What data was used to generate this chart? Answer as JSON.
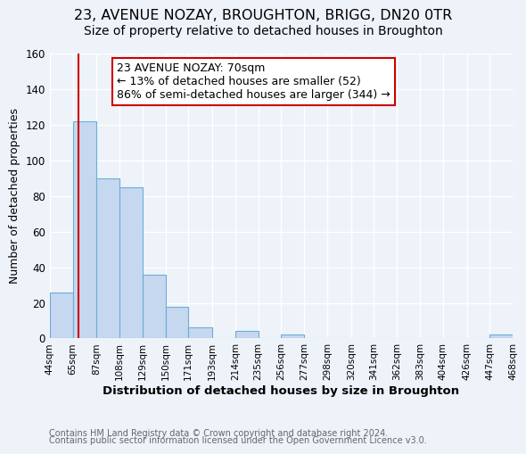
{
  "title": "23, AVENUE NOZAY, BROUGHTON, BRIGG, DN20 0TR",
  "subtitle": "Size of property relative to detached houses in Broughton",
  "xlabel": "Distribution of detached houses by size in Broughton",
  "ylabel": "Number of detached properties",
  "bin_edges": [
    44,
    65,
    87,
    108,
    129,
    150,
    171,
    193,
    214,
    235,
    256,
    277,
    298,
    320,
    341,
    362,
    383,
    404,
    426,
    447,
    468
  ],
  "bar_heights": [
    26,
    122,
    90,
    85,
    36,
    18,
    6,
    0,
    4,
    0,
    2,
    0,
    0,
    0,
    0,
    0,
    0,
    0,
    0,
    2
  ],
  "bar_color": "#c5d8f0",
  "bar_edge_color": "#6aaed6",
  "vline_x": 70,
  "vline_color": "#cc0000",
  "annotation_line1": "23 AVENUE NOZAY: 70sqm",
  "annotation_line2": "← 13% of detached houses are smaller (52)",
  "annotation_line3": "86% of semi-detached houses are larger (344) →",
  "annotation_box_color": "#ffffff",
  "annotation_box_edge": "#cc0000",
  "ylim": [
    0,
    160
  ],
  "yticks": [
    0,
    20,
    40,
    60,
    80,
    100,
    120,
    140,
    160
  ],
  "tick_labels": [
    "44sqm",
    "65sqm",
    "87sqm",
    "108sqm",
    "129sqm",
    "150sqm",
    "171sqm",
    "193sqm",
    "214sqm",
    "235sqm",
    "256sqm",
    "277sqm",
    "298sqm",
    "320sqm",
    "341sqm",
    "362sqm",
    "383sqm",
    "404sqm",
    "426sqm",
    "447sqm",
    "468sqm"
  ],
  "footer1": "Contains HM Land Registry data © Crown copyright and database right 2024.",
  "footer2": "Contains public sector information licensed under the Open Government Licence v3.0.",
  "background_color": "#eef2f9",
  "grid_color": "#ffffff",
  "title_fontsize": 11.5,
  "subtitle_fontsize": 10,
  "label_fontsize": 9.5,
  "annotation_fontsize": 9,
  "footer_fontsize": 7,
  "ylabel_fontsize": 9
}
